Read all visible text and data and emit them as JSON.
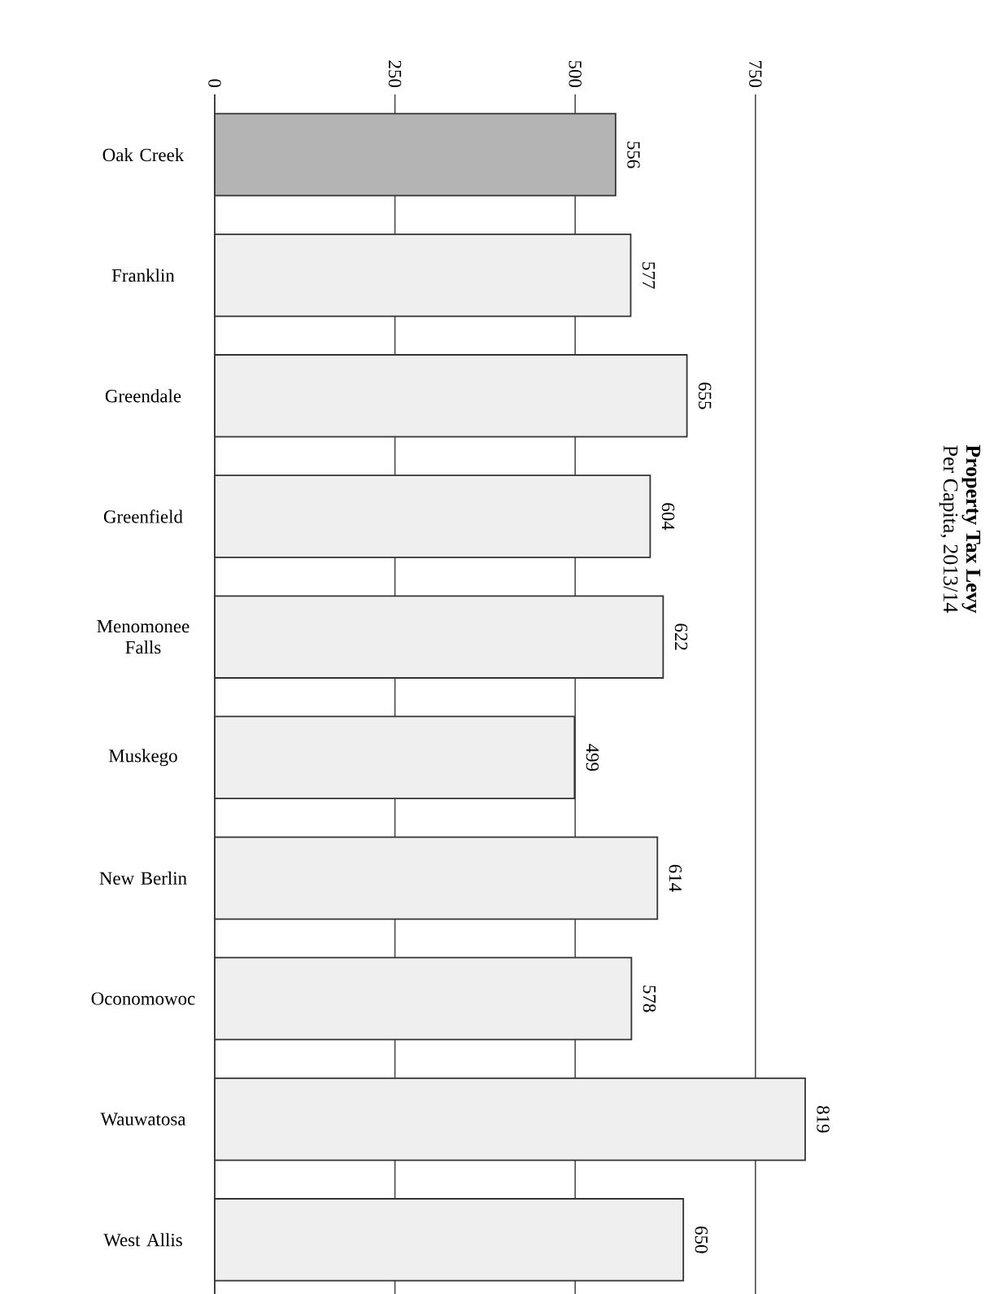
{
  "chart_data": {
    "type": "bar",
    "orientation": "horizontal",
    "title": "Property Tax Levy",
    "subtitle": "Per Capita, 2013/14",
    "categories": [
      "Oak Creek",
      "Franklin",
      "Greendale",
      "Greenfield",
      "Menomonee Falls",
      "Muskego",
      "New Berlin",
      "Oconomowoc",
      "Wauwatosa",
      "West Allis"
    ],
    "values": [
      556,
      577,
      655,
      604,
      622,
      499,
      614,
      578,
      819,
      650
    ],
    "colors": [
      "#b4b4b4",
      "#efefef",
      "#efefef",
      "#efefef",
      "#efefef",
      "#efefef",
      "#efefef",
      "#efefef",
      "#efefef",
      "#efefef"
    ],
    "xlim": [
      0,
      819
    ],
    "xticks": [
      0,
      250,
      500,
      750
    ],
    "grid": "x",
    "data_labels": true
  }
}
